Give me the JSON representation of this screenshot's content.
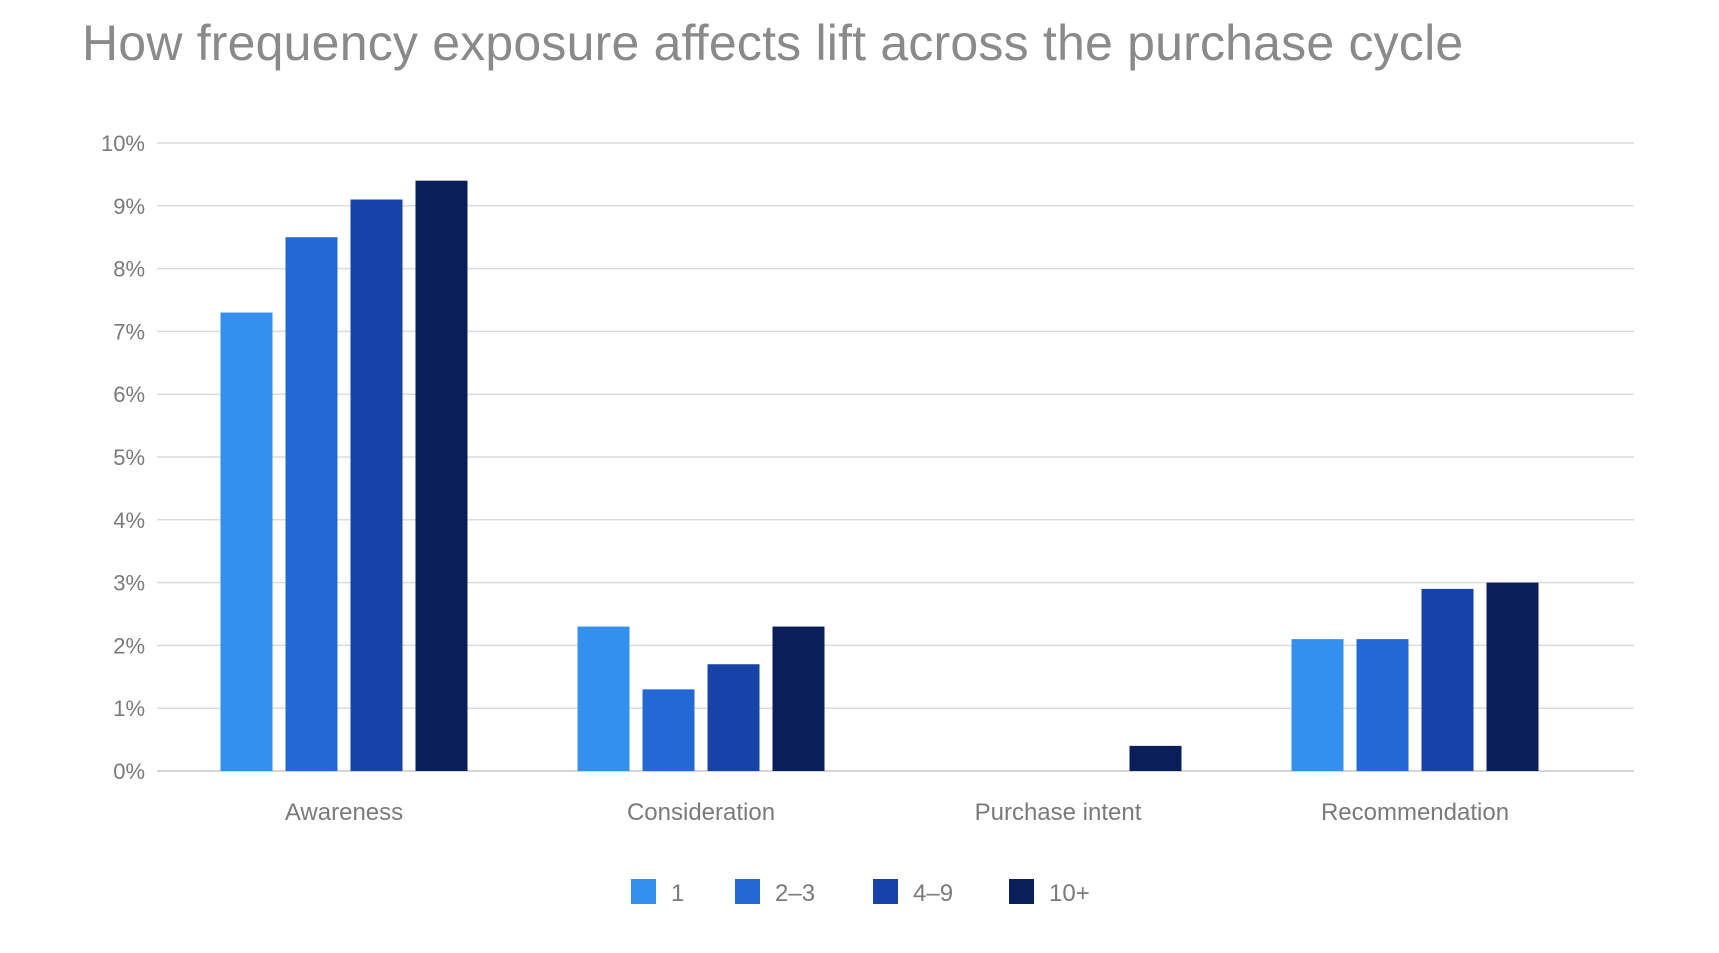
{
  "chart_data": {
    "type": "bar",
    "title": "How frequency exposure affects lift across the purchase cycle",
    "xlabel": "",
    "ylabel": "",
    "categories": [
      "Awareness",
      "Consideration",
      "Purchase intent",
      "Recommendation"
    ],
    "series": [
      {
        "name": "1",
        "color": "#3490ee",
        "values": [
          7.3,
          2.3,
          0.0,
          2.1
        ]
      },
      {
        "name": "2–3",
        "color": "#2369d6",
        "values": [
          8.5,
          1.3,
          0.0,
          2.1
        ]
      },
      {
        "name": "4–9",
        "color": "#1743a8",
        "values": [
          9.1,
          1.7,
          0.0,
          2.9
        ]
      },
      {
        "name": "10+",
        "color": "#0a1f59",
        "values": [
          9.4,
          2.3,
          0.4,
          3.0
        ]
      }
    ],
    "ylim": [
      0,
      10
    ],
    "yticks": [
      "0%",
      "1%",
      "2%",
      "3%",
      "4%",
      "5%",
      "6%",
      "7%",
      "8%",
      "9%",
      "10%"
    ],
    "grid": true,
    "legend_position": "bottom-center"
  }
}
